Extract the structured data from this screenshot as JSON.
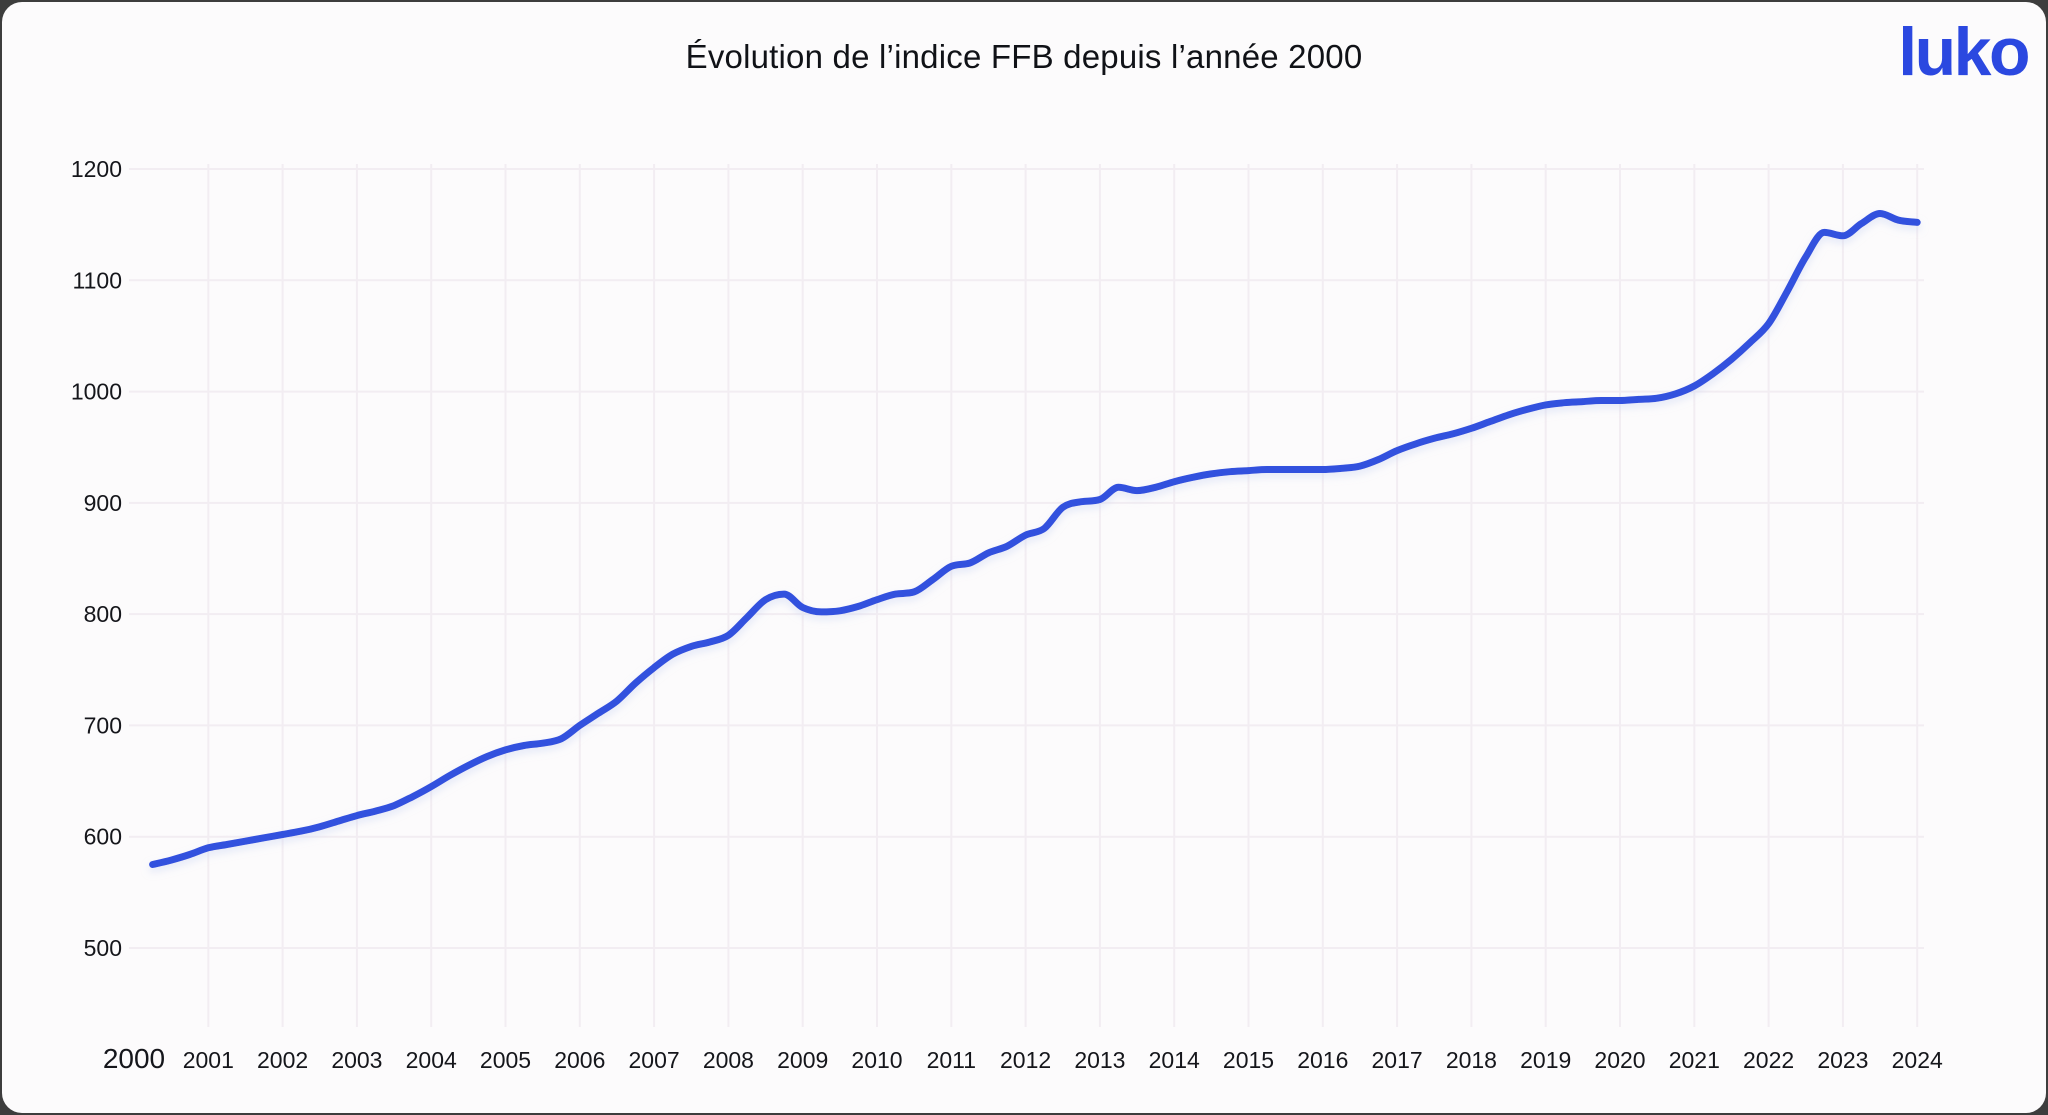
{
  "header": {
    "title": "Évolution de l’indice FFB depuis l’année 2000",
    "logo_text": "luko"
  },
  "colors": {
    "line": "#3351de",
    "line_shadow": "#c9d4f2",
    "grid": "#f2edf2",
    "text": "#15161b",
    "logo": "#2b48e0",
    "card_background": "#fcfbfc",
    "frame_background": "#3d3d3d"
  },
  "chart_data": {
    "type": "line",
    "title": "Évolution de l’indice FFB depuis l’année 2000",
    "xlabel": "",
    "ylabel": "",
    "legend": false,
    "grid": true,
    "x_ticks": [
      2000,
      2001,
      2002,
      2003,
      2004,
      2005,
      2006,
      2007,
      2008,
      2009,
      2010,
      2011,
      2012,
      2013,
      2014,
      2015,
      2016,
      2017,
      2018,
      2019,
      2020,
      2021,
      2022,
      2023,
      2024
    ],
    "y_ticks": [
      500,
      600,
      700,
      800,
      900,
      1000,
      1100,
      1200
    ],
    "xlim": [
      2000,
      2024.6
    ],
    "ylim": [
      430,
      1265
    ],
    "series": [
      {
        "name": "Indice FFB",
        "t_start": 2000.25,
        "t_step": 0.25,
        "values": [
          575,
          579,
          584,
          590,
          593,
          596,
          599,
          602,
          605,
          609,
          614,
          619,
          623,
          628,
          636,
          645,
          655,
          664,
          672,
          678,
          682,
          684,
          688,
          700,
          711,
          722,
          738,
          752,
          764,
          771,
          775,
          781,
          797,
          813,
          818,
          806,
          802,
          803,
          807,
          813,
          818,
          820,
          831,
          843,
          846,
          855,
          861,
          871,
          877,
          896,
          901,
          903,
          914,
          911,
          914,
          919,
          923,
          926,
          928,
          929,
          930,
          930,
          930,
          930,
          931,
          933,
          939,
          947,
          953,
          958,
          962,
          967,
          973,
          979,
          984,
          988,
          990,
          991,
          992,
          992,
          993,
          994,
          998,
          1005,
          1016,
          1029,
          1044,
          1061,
          1090,
          1121,
          1143,
          1140,
          1151,
          1160,
          1154,
          1152
        ]
      }
    ]
  }
}
